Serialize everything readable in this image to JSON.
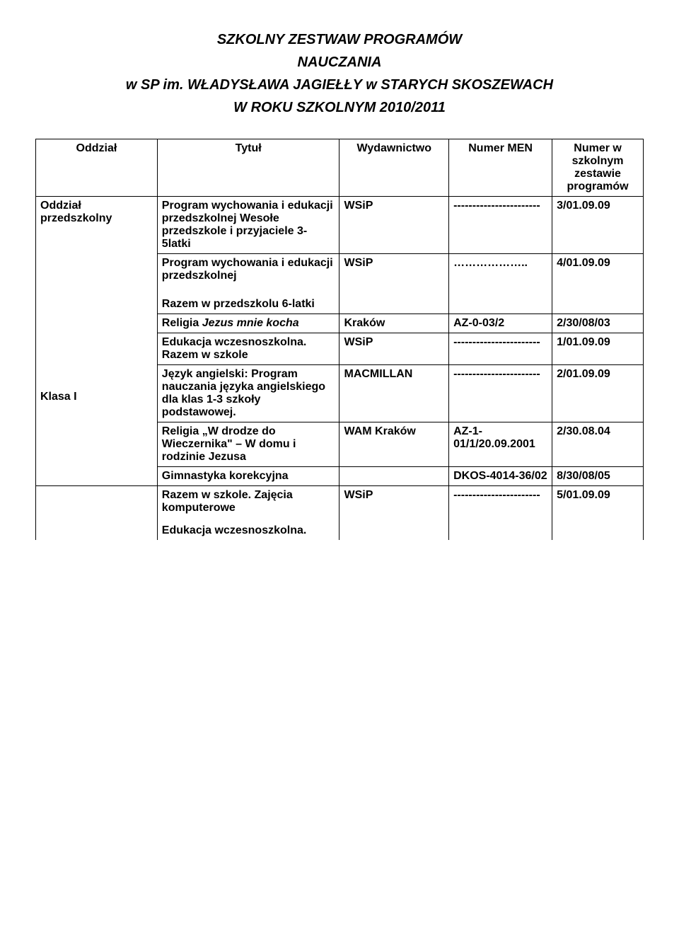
{
  "title": {
    "line1": "SZKOLNY ZESTWAW PROGRAMÓW",
    "line2": "NAUCZANIA",
    "line3": "w SP im. WŁADYSŁAWA JAGIEŁŁY w STARYCH  SKOSZEWACH",
    "line4": "W ROKU SZKOLNYM 2010/2011"
  },
  "columns": {
    "oddzial": "Oddział",
    "tytul": "Tytuł",
    "wydawnictwo": "Wydawnictwo",
    "numer_men": "Numer MEN",
    "numer_w": "Numer w szkolnym zestawie programów"
  },
  "rows": {
    "r1": {
      "oddzial": "Oddział przedszkolny",
      "tytul": "Program wychowania i edukacji przedszkolnej Wesołe przedszkole i przyjaciele 3-5latki",
      "wyd": "WSiP",
      "men": "-----------------------",
      "numw": "3/01.09.09"
    },
    "r2": {
      "tytul": "Program wychowania i edukacji przedszkolnej",
      "wyd": "WSiP",
      "men": "………………..",
      "numw": "4/01.09.09"
    },
    "r3": {
      "tytul_top": "Razem w przedszkolu 6-latki",
      "tytul_bot": "Religia ",
      "tytul_italic": "Jezus mnie kocha",
      "wyd": "Kraków",
      "men": "AZ-0-03/2",
      "numw": "2/30/08/03"
    },
    "r4": {
      "oddzial": "Klasa  I",
      "tytul": "Edukacja wczesnoszkolna. Razem w szkole",
      "wyd": "WSiP",
      "men": "-----------------------",
      "numw": "1/01.09.09"
    },
    "r5": {
      "tytul": "Język angielski: Program nauczania języka angielskiego dla klas 1-3 szkoły podstawowej.",
      "wyd": "MACMILLAN",
      "men": "-----------------------",
      "numw": "2/01.09.09"
    },
    "r6": {
      "tytul": "Religia „W drodze do Wieczernika\" – W domu i rodzinie Jezusa",
      "wyd": "WAM Kraków",
      "men": "AZ-1-01/1/20.09.2001",
      "numw": "2/30.08.04"
    },
    "r7": {
      "tytul": "Gimnastyka korekcyjna",
      "wyd": "",
      "men": "DKOS-4014-36/02",
      "numw": "8/30/08/05"
    },
    "r8": {
      "tytul_top": "Razem w szkole. Zajęcia komputerowe",
      "tytul_bot": "Edukacja wczesnoszkolna.",
      "wyd": "WSiP",
      "men": "-----------------------",
      "numw": "5/01.09.09"
    }
  },
  "style": {
    "background_color": "#ffffff",
    "text_color": "#000000",
    "border_color": "#000000",
    "font_size_body": 16,
    "font_size_title": 20,
    "font_family": "Arial"
  }
}
